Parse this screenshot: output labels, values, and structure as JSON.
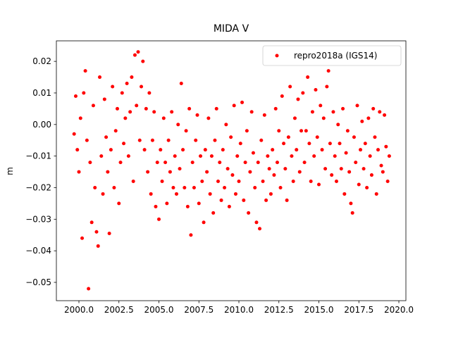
{
  "chart_data": {
    "type": "scatter",
    "title": "MIDA V",
    "y_label": "m",
    "legend": "upper right",
    "xlim": [
      1998.59,
      2020.44
    ],
    "ylim": [
      -0.0558,
      0.0265
    ],
    "xticks": [
      {
        "value": 2000,
        "label": "2000.0"
      },
      {
        "value": 2002.5,
        "label": "2002.5"
      },
      {
        "value": 2005,
        "label": "2005.0"
      },
      {
        "value": 2007.5,
        "label": "2007.5"
      },
      {
        "value": 2010,
        "label": "2010.0"
      },
      {
        "value": 2012.5,
        "label": "2012.5"
      },
      {
        "value": 2015,
        "label": "2015.0"
      },
      {
        "value": 2017.5,
        "label": "2017.5"
      },
      {
        "value": 2020,
        "label": "2020.0"
      }
    ],
    "yticks": [
      {
        "value": -0.05,
        "label": "−0.05"
      },
      {
        "value": -0.04,
        "label": "−0.04"
      },
      {
        "value": -0.03,
        "label": "−0.03"
      },
      {
        "value": -0.02,
        "label": "−0.02"
      },
      {
        "value": -0.01,
        "label": "−0.01"
      },
      {
        "value": 0,
        "label": "0.00"
      },
      0.01,
      0.02
    ],
    "series": [
      {
        "name": "repro2018a (IGS14)",
        "color": "#ff0000",
        "x": [
          1999.7,
          1999.8,
          1999.9,
          2000.0,
          2000.1,
          2000.2,
          2000.3,
          2000.4,
          2000.5,
          2000.6,
          2000.7,
          2000.8,
          2000.9,
          2001.0,
          2001.1,
          2001.2,
          2001.3,
          2001.4,
          2001.5,
          2001.6,
          2001.7,
          2001.8,
          2001.9,
          2002.0,
          2002.1,
          2002.2,
          2002.3,
          2002.4,
          2002.5,
          2002.6,
          2002.7,
          2002.8,
          2002.9,
          2003.0,
          2003.1,
          2003.2,
          2003.3,
          2003.4,
          2003.5,
          2003.6,
          2003.7,
          2003.8,
          2003.9,
          2004.0,
          2004.1,
          2004.2,
          2004.3,
          2004.4,
          2004.5,
          2004.6,
          2004.7,
          2004.8,
          2004.9,
          2005.0,
          2005.1,
          2005.2,
          2005.3,
          2005.4,
          2005.5,
          2005.6,
          2005.7,
          2005.8,
          2005.9,
          2006.0,
          2006.1,
          2006.2,
          2006.3,
          2006.4,
          2006.5,
          2006.6,
          2006.7,
          2006.8,
          2006.9,
          2007.0,
          2007.1,
          2007.2,
          2007.3,
          2007.4,
          2007.5,
          2007.6,
          2007.7,
          2007.8,
          2007.9,
          2008.0,
          2008.1,
          2008.2,
          2008.3,
          2008.4,
          2008.5,
          2008.6,
          2008.7,
          2008.8,
          2008.9,
          2009.0,
          2009.1,
          2009.2,
          2009.3,
          2009.4,
          2009.5,
          2009.6,
          2009.7,
          2009.8,
          2009.9,
          2010.0,
          2010.1,
          2010.2,
          2010.3,
          2010.4,
          2010.5,
          2010.6,
          2010.7,
          2010.8,
          2010.9,
          2011.0,
          2011.1,
          2011.2,
          2011.3,
          2011.4,
          2011.5,
          2011.6,
          2011.7,
          2011.8,
          2011.9,
          2012.0,
          2012.1,
          2012.2,
          2012.3,
          2012.4,
          2012.5,
          2012.6,
          2012.7,
          2012.8,
          2012.9,
          2013.0,
          2013.1,
          2013.2,
          2013.3,
          2013.4,
          2013.5,
          2013.6,
          2013.7,
          2013.8,
          2013.9,
          2014.0,
          2014.1,
          2014.2,
          2014.3,
          2014.4,
          2014.5,
          2014.6,
          2014.7,
          2014.8,
          2014.9,
          2015.0,
          2015.1,
          2015.2,
          2015.3,
          2015.4,
          2015.5,
          2015.6,
          2015.7,
          2015.8,
          2015.9,
          2016.0,
          2016.1,
          2016.2,
          2016.3,
          2016.4,
          2016.5,
          2016.6,
          2016.7,
          2016.8,
          2016.9,
          2017.0,
          2017.1,
          2017.2,
          2017.3,
          2017.4,
          2017.5,
          2017.6,
          2017.7,
          2017.8,
          2017.9,
          2018.0,
          2018.1,
          2018.2,
          2018.3,
          2018.4,
          2018.5,
          2018.6,
          2018.7,
          2018.8,
          2018.9,
          2019.0,
          2019.1,
          2019.2,
          2019.3,
          2019.4
        ],
        "values": [
          -0.003,
          0.009,
          -0.008,
          -0.015,
          0.002,
          -0.036,
          0.01,
          0.017,
          -0.005,
          -0.052,
          -0.012,
          -0.031,
          0.006,
          -0.02,
          -0.034,
          -0.0385,
          0.015,
          -0.01,
          -0.022,
          0.008,
          -0.004,
          -0.015,
          -0.0345,
          -0.008,
          0.012,
          -0.02,
          -0.002,
          0.005,
          -0.025,
          -0.012,
          0.01,
          -0.006,
          0.002,
          0.013,
          -0.01,
          0.004,
          0.015,
          -0.018,
          0.022,
          0.006,
          0.023,
          -0.005,
          0.012,
          0.02,
          -0.008,
          0.005,
          -0.015,
          0.01,
          -0.022,
          -0.005,
          0.004,
          -0.026,
          -0.012,
          -0.03,
          -0.008,
          -0.018,
          0.002,
          -0.012,
          -0.025,
          -0.005,
          -0.015,
          0.004,
          -0.02,
          -0.01,
          -0.022,
          0.0,
          -0.014,
          0.013,
          -0.008,
          -0.02,
          -0.002,
          -0.026,
          0.005,
          -0.035,
          -0.012,
          -0.02,
          -0.005,
          0.003,
          -0.025,
          -0.01,
          -0.018,
          -0.031,
          -0.008,
          -0.015,
          0.002,
          -0.022,
          -0.01,
          -0.028,
          -0.005,
          0.005,
          -0.018,
          -0.012,
          -0.024,
          -0.008,
          -0.02,
          0.0,
          -0.014,
          -0.026,
          -0.004,
          -0.016,
          0.006,
          -0.022,
          -0.01,
          -0.018,
          -0.006,
          0.007,
          -0.024,
          -0.012,
          -0.002,
          -0.028,
          -0.015,
          0.004,
          -0.009,
          -0.02,
          -0.031,
          -0.012,
          -0.033,
          -0.005,
          -0.018,
          0.003,
          -0.024,
          -0.01,
          -0.014,
          -0.022,
          -0.008,
          -0.016,
          0.005,
          -0.012,
          -0.002,
          -0.02,
          0.009,
          -0.006,
          -0.014,
          -0.024,
          -0.004,
          0.012,
          -0.01,
          -0.018,
          0.002,
          -0.008,
          0.008,
          -0.015,
          -0.002,
          0.01,
          -0.012,
          -0.002,
          0.015,
          -0.006,
          -0.018,
          0.004,
          -0.01,
          0.011,
          -0.004,
          -0.019,
          0.006,
          -0.008,
          0.002,
          -0.014,
          0.012,
          0.017,
          -0.006,
          -0.016,
          0.004,
          -0.01,
          -0.018,
          0.0,
          -0.006,
          -0.014,
          0.005,
          -0.022,
          -0.009,
          -0.002,
          -0.015,
          -0.025,
          -0.028,
          -0.004,
          -0.012,
          0.006,
          -0.019,
          -0.008,
          0.001,
          -0.014,
          -0.006,
          -0.02,
          0.002,
          -0.01,
          -0.016,
          0.005,
          -0.004,
          -0.022,
          -0.008,
          0.004,
          -0.013,
          -0.015,
          0.003,
          -0.007,
          -0.018,
          -0.01
        ]
      }
    ]
  }
}
